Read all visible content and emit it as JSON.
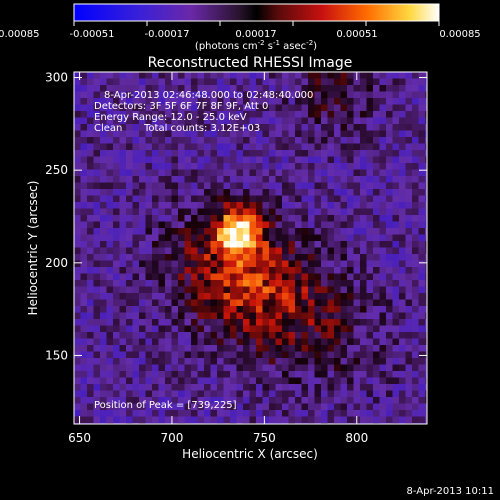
{
  "colorbar": {
    "ticks": [
      "-0.00085",
      "-0.00051",
      "-0.00017",
      "0.00017",
      "0.00051",
      "0.00085"
    ],
    "units_prefix": "(photons cm",
    "units_sup1": "-2",
    "units_mid": " s",
    "units_sup2": "-1",
    "units_mid2": " asec",
    "units_sup3": "-2",
    "units_suffix": ")",
    "range": [
      -0.00085,
      0.00085
    ],
    "colormap": "sunset (blue-purple-black-red-yellow-white)"
  },
  "chart_data": {
    "type": "heatmap",
    "title": "Reconstructed RHESSI Image",
    "xlabel": "Heliocentric X (arcsec)",
    "ylabel": "Heliocentric Y (arcsec)",
    "xlim": [
      647,
      838
    ],
    "ylim": [
      113,
      303
    ],
    "x_ticks": [
      650,
      700,
      750,
      800
    ],
    "y_ticks": [
      150,
      200,
      250,
      300
    ],
    "x_tick_labels": [
      "650",
      "700",
      "750",
      "800"
    ],
    "y_tick_labels": [
      "150",
      "200",
      "250",
      "300"
    ],
    "peak": [
      739,
      225
    ],
    "annotations": {
      "time_range": "8-Apr-2013 02:46:48.000 to 02:48:40.000",
      "detectors": "Detectors: 3F 5F 6F 7F 8F 9F, Att 0",
      "energy": "Energy Range: 12.0 - 25.0 keV",
      "clean_label": "Clean",
      "total_counts": "Total counts: 3.12E+03",
      "peak_position": "Position of Peak = [739,225]"
    }
  },
  "footer": {
    "timestamp": "8-Apr-2013 10:11"
  }
}
